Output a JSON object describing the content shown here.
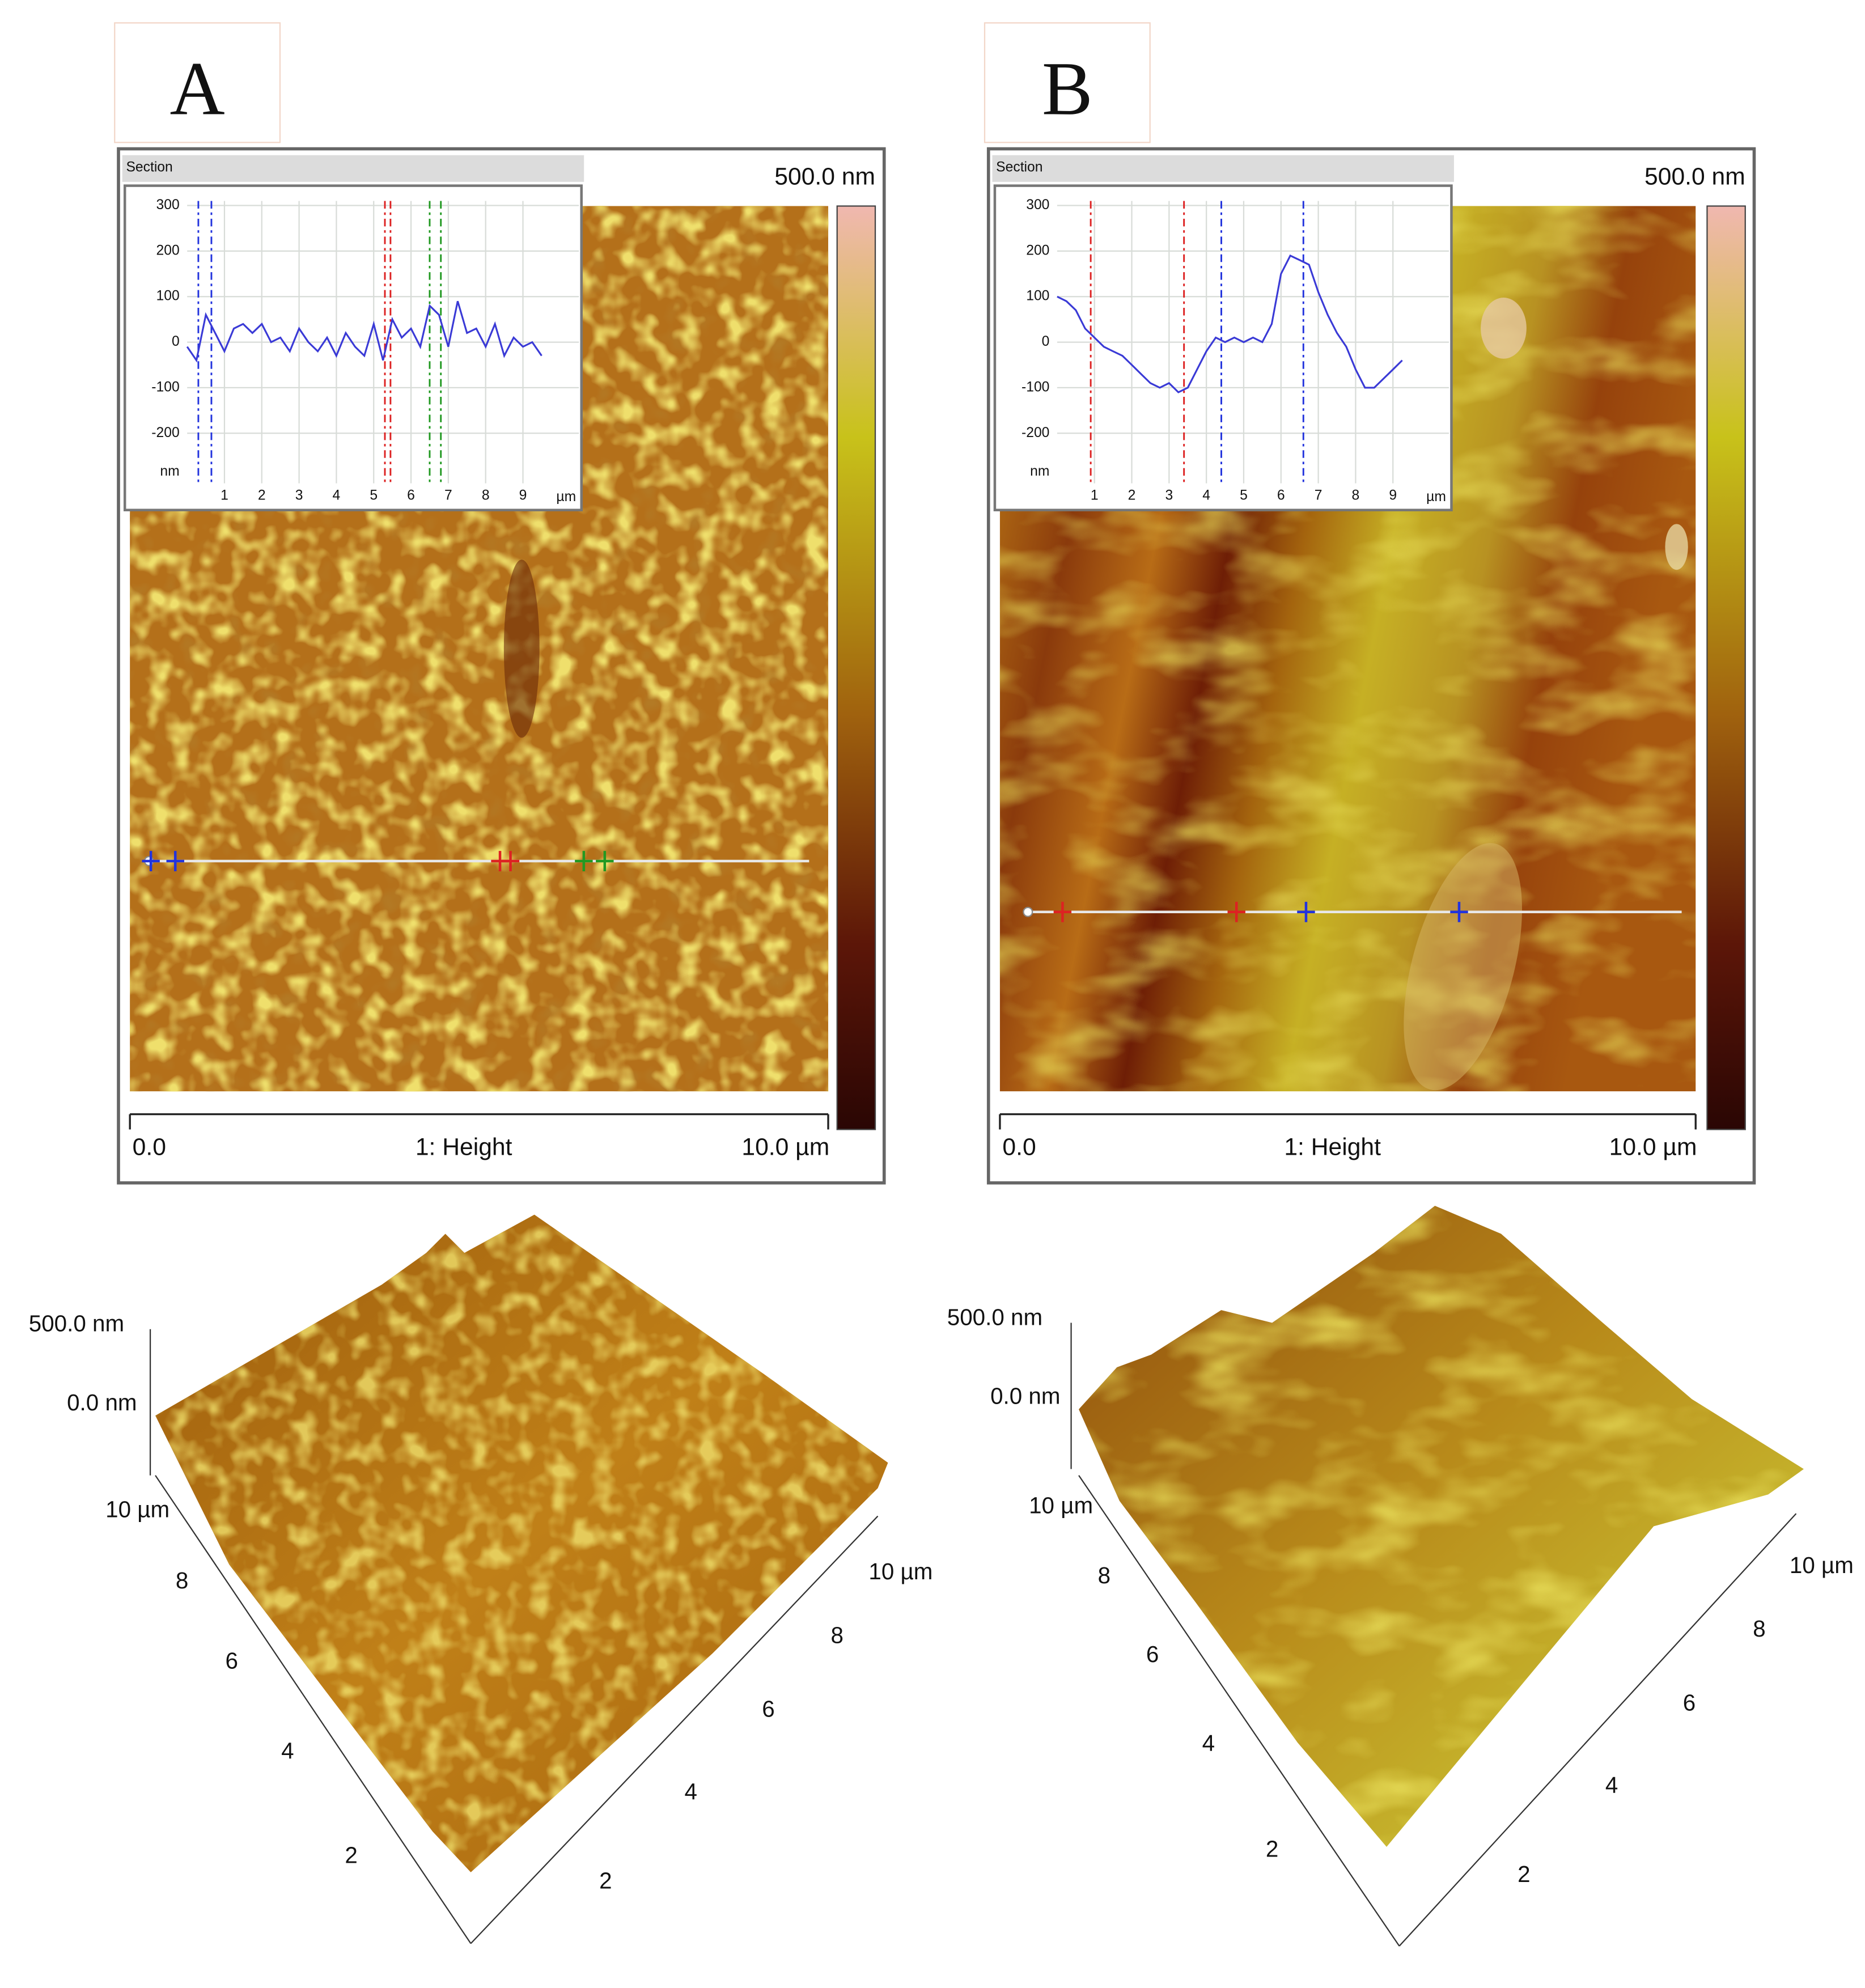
{
  "panels": [
    {
      "label": "A",
      "colorbar_label": "500.0 nm",
      "scan_axis": {
        "start": "0.0",
        "title": "1: Height",
        "end": "10.0 µm"
      },
      "section": {
        "type": "line",
        "title": "Section",
        "color": "#3a3ad6",
        "x": [
          0,
          0.25,
          0.5,
          0.75,
          1,
          1.25,
          1.5,
          1.75,
          2,
          2.25,
          2.5,
          2.75,
          3,
          3.25,
          3.5,
          3.75,
          4,
          4.25,
          4.5,
          4.75,
          5,
          5.25,
          5.5,
          5.75,
          6,
          6.25,
          6.5,
          6.75,
          7,
          7.25,
          7.5,
          7.75,
          8,
          8.25,
          8.5,
          8.75,
          9,
          9.25,
          9.5
        ],
        "values": [
          -10,
          -40,
          60,
          20,
          -20,
          30,
          40,
          20,
          40,
          0,
          10,
          -20,
          30,
          0,
          -20,
          10,
          -30,
          20,
          -10,
          -30,
          40,
          -40,
          50,
          10,
          30,
          -10,
          80,
          60,
          -10,
          90,
          20,
          30,
          -10,
          40,
          -30,
          10,
          -10,
          0,
          -30
        ],
        "xlim": [
          0,
          10.5
        ],
        "ylim": [
          -310,
          310
        ],
        "xticks": [
          1,
          2,
          3,
          4,
          5,
          6,
          7,
          8,
          9
        ],
        "yticks": [
          300,
          200,
          100,
          0,
          -100,
          -200
        ],
        "x_unit": "µm",
        "y_unit": "nm",
        "grid": true,
        "cursors": [
          {
            "x": 0.3,
            "color": "#2233dd"
          },
          {
            "x": 0.65,
            "color": "#2233dd"
          },
          {
            "x": 5.3,
            "color": "#dd2222"
          },
          {
            "x": 5.45,
            "color": "#dd2222"
          },
          {
            "x": 6.5,
            "color": "#229922"
          },
          {
            "x": 6.8,
            "color": "#229922"
          }
        ]
      },
      "view3d": {
        "z_labels": [
          "500.0 nm",
          "0.0 nm"
        ],
        "left_labels": [
          "10 µm",
          "8",
          "6",
          "4",
          "2"
        ],
        "right_labels": [
          "2",
          "4",
          "6",
          "8",
          "10 µm"
        ]
      }
    },
    {
      "label": "B",
      "colorbar_label": "500.0 nm",
      "scan_axis": {
        "start": "0.0",
        "title": "1: Height",
        "end": "10.0 µm"
      },
      "section": {
        "type": "line",
        "title": "Section",
        "color": "#3a3ad6",
        "x": [
          0,
          0.25,
          0.5,
          0.75,
          1,
          1.25,
          1.5,
          1.75,
          2,
          2.25,
          2.5,
          2.75,
          3,
          3.25,
          3.5,
          3.75,
          4,
          4.25,
          4.5,
          4.75,
          5,
          5.25,
          5.5,
          5.75,
          6,
          6.25,
          6.5,
          6.75,
          7,
          7.25,
          7.5,
          7.75,
          8,
          8.25,
          8.5,
          8.75,
          9,
          9.25
        ],
        "values": [
          100,
          90,
          70,
          30,
          10,
          -10,
          -20,
          -30,
          -50,
          -70,
          -90,
          -100,
          -90,
          -110,
          -100,
          -60,
          -20,
          10,
          0,
          10,
          0,
          10,
          0,
          40,
          150,
          190,
          180,
          170,
          110,
          60,
          20,
          -10,
          -60,
          -100,
          -100,
          -80,
          -60,
          -40
        ],
        "xlim": [
          0,
          10.5
        ],
        "ylim": [
          -310,
          310
        ],
        "xticks": [
          1,
          2,
          3,
          4,
          5,
          6,
          7,
          8,
          9
        ],
        "yticks": [
          300,
          200,
          100,
          0,
          -100,
          -200
        ],
        "x_unit": "µm",
        "y_unit": "nm",
        "grid": true,
        "cursors": [
          {
            "x": 0.9,
            "color": "#dd2222"
          },
          {
            "x": 3.4,
            "color": "#dd2222"
          },
          {
            "x": 4.4,
            "color": "#2233dd"
          },
          {
            "x": 6.6,
            "color": "#2233dd"
          }
        ]
      },
      "view3d": {
        "z_labels": [
          "500.0 nm",
          "0.0 nm"
        ],
        "left_labels": [
          "10 µm",
          "8",
          "6",
          "4",
          "2"
        ],
        "right_labels": [
          "2",
          "4",
          "6",
          "8",
          "10 µm"
        ]
      }
    }
  ]
}
